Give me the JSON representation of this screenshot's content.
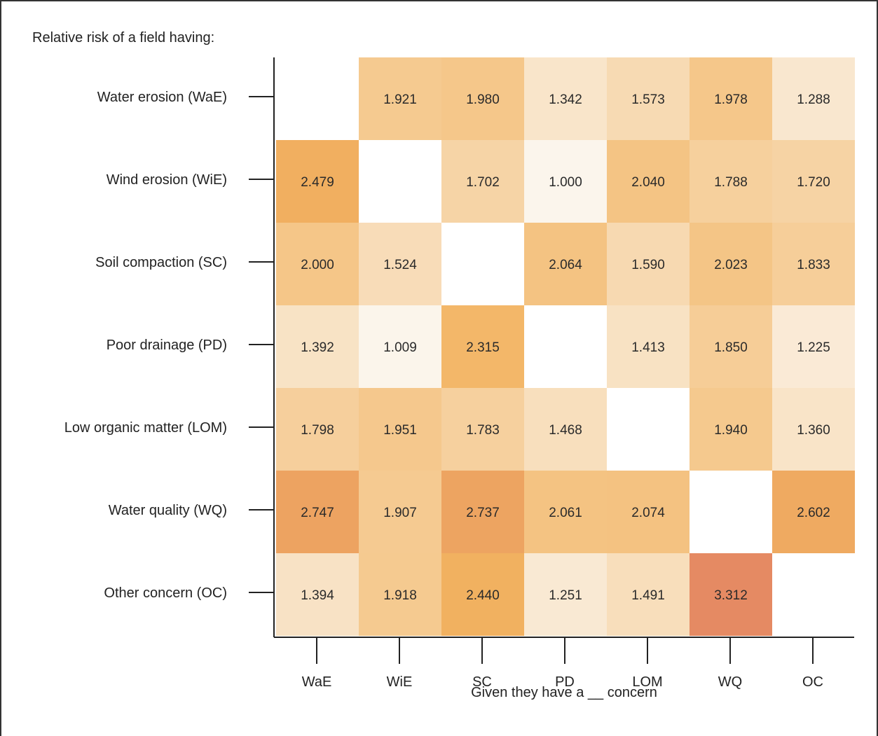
{
  "chart_data": {
    "type": "heatmap",
    "title": "Relative risk of a field having:",
    "xlabel": "Given they have a __ concern",
    "ylabel": "",
    "rows": [
      "Water erosion (WaE)",
      "Wind erosion (WiE)",
      "Soil compaction (SC)",
      "Poor drainage (PD)",
      "Low organic matter (LOM)",
      "Water quality (WQ)",
      "Other concern (OC)"
    ],
    "columns": [
      "WaE",
      "WiE",
      "SC",
      "PD",
      "LOM",
      "WQ",
      "OC"
    ],
    "values": [
      [
        null,
        1.921,
        1.98,
        1.342,
        1.573,
        1.978,
        1.288
      ],
      [
        2.479,
        null,
        1.702,
        1.0,
        2.04,
        1.788,
        1.72
      ],
      [
        2.0,
        1.524,
        null,
        2.064,
        1.59,
        2.023,
        1.833
      ],
      [
        1.392,
        1.009,
        2.315,
        null,
        1.413,
        1.85,
        1.225
      ],
      [
        1.798,
        1.951,
        1.783,
        1.468,
        null,
        1.94,
        1.36
      ],
      [
        2.747,
        1.907,
        2.737,
        2.061,
        2.074,
        null,
        2.602
      ],
      [
        1.394,
        1.918,
        2.44,
        1.251,
        1.491,
        3.312,
        null
      ]
    ],
    "value_labels": [
      [
        "",
        "1.921",
        "1.980",
        "1.342",
        "1.573",
        "1.978",
        "1.288"
      ],
      [
        "2.479",
        "",
        "1.702",
        "1.000",
        "2.040",
        "1.788",
        "1.720"
      ],
      [
        "2.000",
        "1.524",
        "",
        "2.064",
        "1.590",
        "2.023",
        "1.833"
      ],
      [
        "1.392",
        "1.009",
        "2.315",
        "",
        "1.413",
        "1.850",
        "1.225"
      ],
      [
        "1.798",
        "1.951",
        "1.783",
        "1.468",
        "",
        "1.940",
        "1.360"
      ],
      [
        "2.747",
        "1.907",
        "2.737",
        "2.061",
        "2.074",
        "",
        "2.602"
      ],
      [
        "1.394",
        "1.918",
        "2.440",
        "1.251",
        "1.491",
        "3.312",
        ""
      ]
    ],
    "color_scale": {
      "min_value": 1.0,
      "mid_value": 2.4,
      "max_value": 3.3,
      "min_color": "#fbf5ec",
      "mid_color": "#f2b360",
      "max_color": "#e58a63"
    },
    "grid": false
  }
}
